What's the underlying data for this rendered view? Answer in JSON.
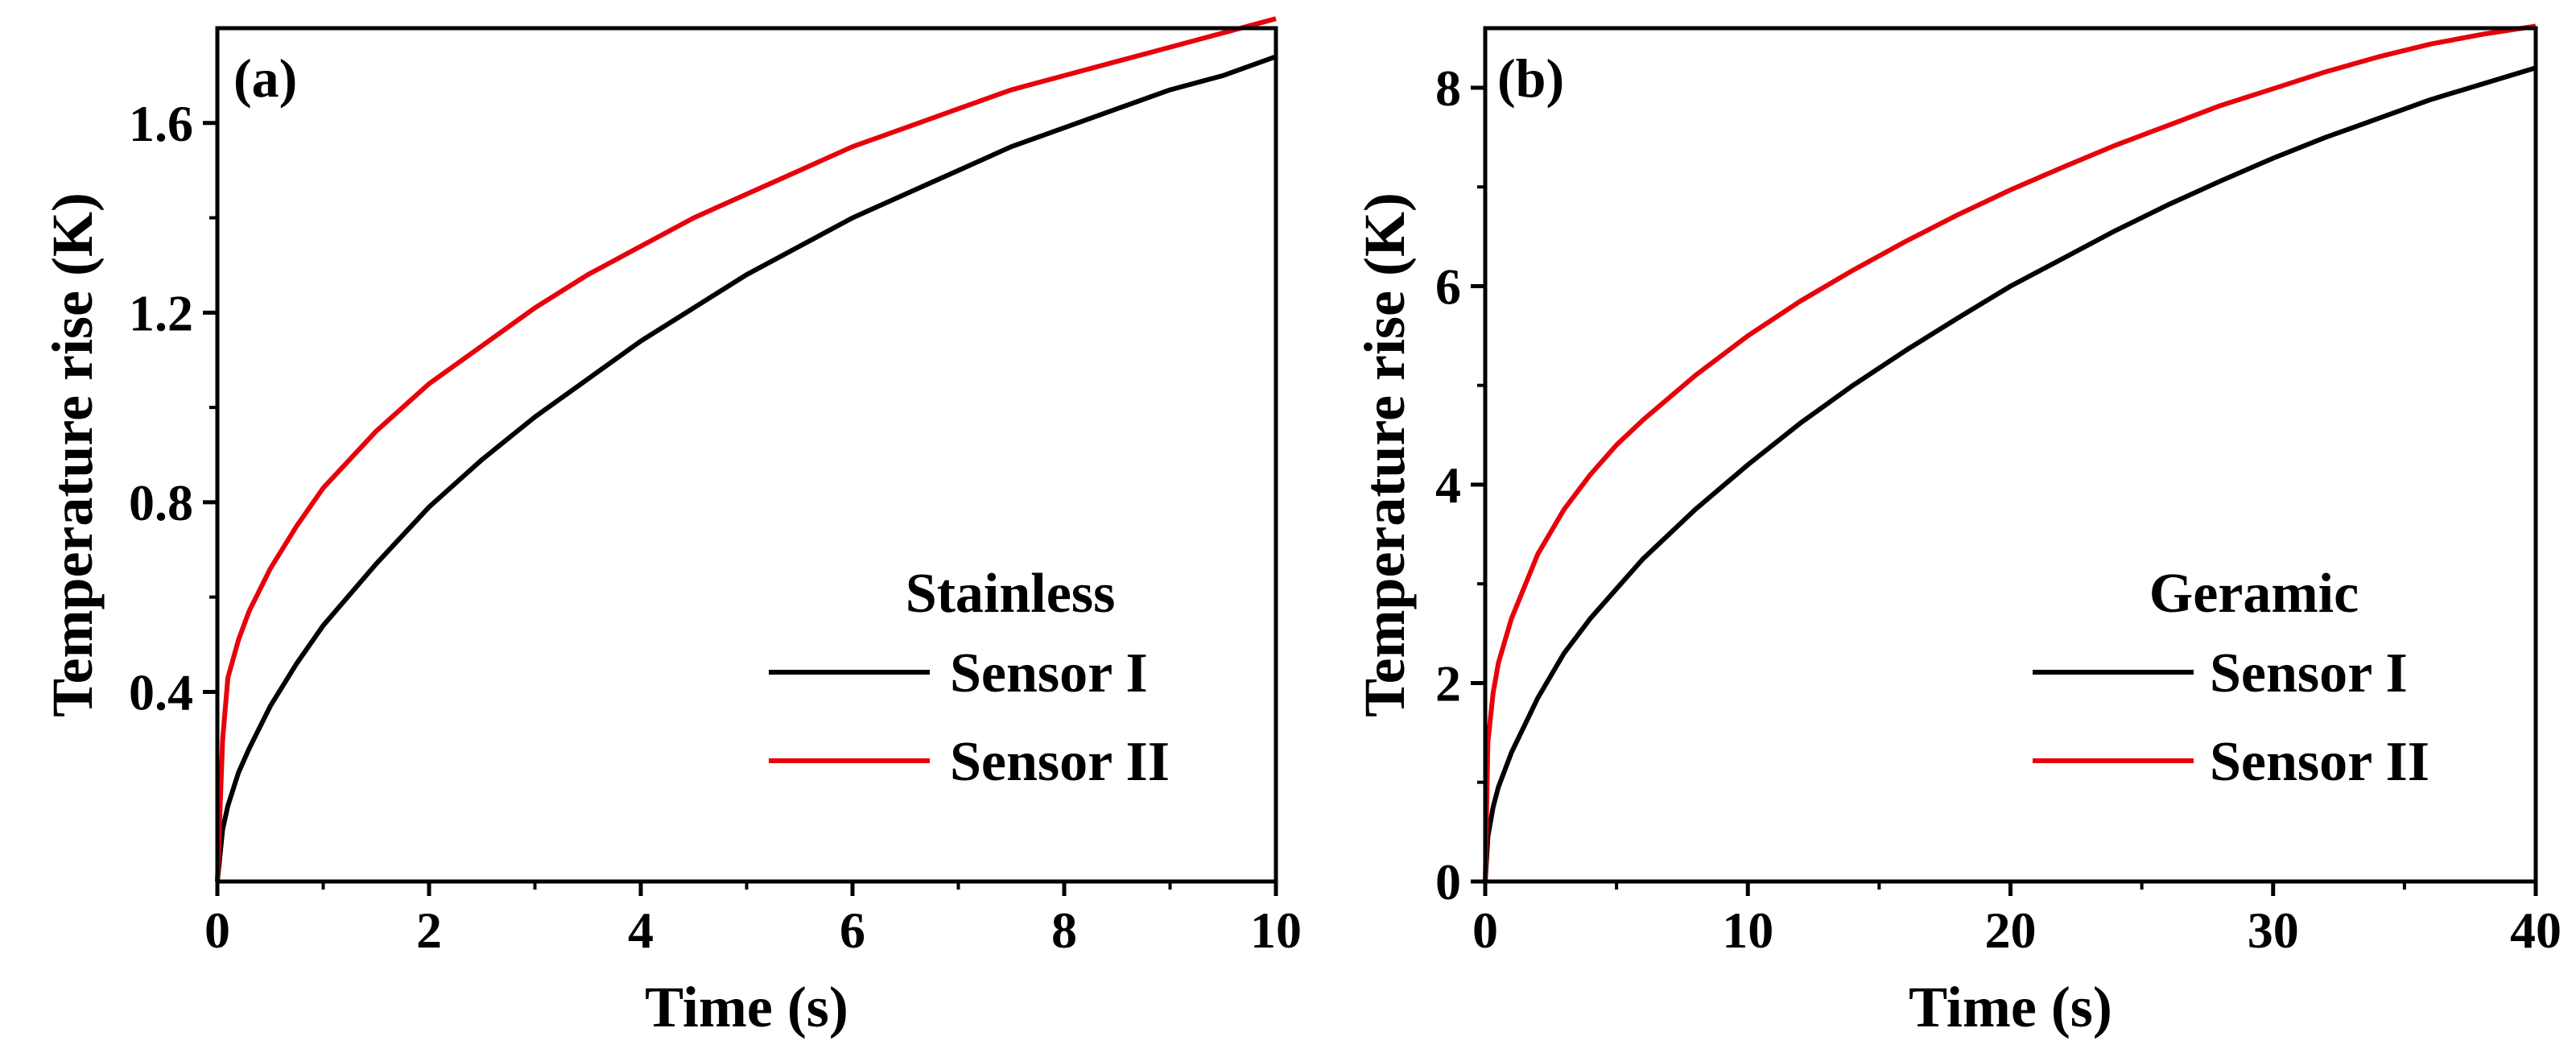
{
  "chart_data": [
    {
      "type": "line",
      "panel_label": "(a)",
      "xlabel": "Time (s)",
      "ylabel": "Temperature rise (K)",
      "xlim": [
        0,
        10
      ],
      "ylim": [
        0,
        1.8
      ],
      "xticks": [
        0,
        2,
        4,
        6,
        8,
        10
      ],
      "xtick_labels": [
        "0",
        "2",
        "4",
        "6",
        "8",
        "10"
      ],
      "yticks": [
        0.4,
        0.8,
        1.2,
        1.6
      ],
      "ytick_labels": [
        "0.4",
        "0.8",
        "1.2",
        "1.6"
      ],
      "legend": {
        "title": "Stainless",
        "placement": "lower-right"
      },
      "series": [
        {
          "name": "Sensor I",
          "color": "#000000",
          "x": [
            0,
            0.05,
            0.1,
            0.2,
            0.3,
            0.5,
            0.75,
            1,
            1.5,
            2,
            2.5,
            3,
            3.5,
            4,
            4.5,
            5,
            5.5,
            6,
            6.5,
            7,
            7.5,
            8,
            8.5,
            9,
            9.5,
            10
          ],
          "y": [
            0,
            0.11,
            0.16,
            0.23,
            0.28,
            0.37,
            0.46,
            0.54,
            0.67,
            0.79,
            0.89,
            0.98,
            1.06,
            1.14,
            1.21,
            1.28,
            1.34,
            1.4,
            1.45,
            1.5,
            1.55,
            1.59,
            1.63,
            1.67,
            1.7,
            1.74
          ]
        },
        {
          "name": "Sensor II",
          "color": "#e8000b",
          "x": [
            0,
            0.05,
            0.1,
            0.2,
            0.3,
            0.5,
            0.75,
            1,
            1.5,
            2,
            2.5,
            3,
            3.5,
            4,
            4.5,
            5,
            5.5,
            6,
            6.5,
            7,
            7.5,
            8,
            8.5,
            9,
            9.5,
            10
          ],
          "y": [
            0,
            0.3,
            0.43,
            0.51,
            0.57,
            0.66,
            0.75,
            0.83,
            0.95,
            1.05,
            1.13,
            1.21,
            1.28,
            1.34,
            1.4,
            1.45,
            1.5,
            1.55,
            1.59,
            1.63,
            1.67,
            1.7,
            1.73,
            1.76,
            1.79,
            1.82
          ]
        }
      ]
    },
    {
      "type": "line",
      "panel_label": "(b)",
      "xlabel": "Time (s)",
      "ylabel": "Temperature rise (K)",
      "xlim": [
        0,
        40
      ],
      "ylim": [
        0,
        8.6
      ],
      "xticks": [
        0,
        10,
        20,
        30,
        40
      ],
      "xtick_labels": [
        "0",
        "10",
        "20",
        "30",
        "40"
      ],
      "yticks": [
        0,
        2,
        4,
        6,
        8
      ],
      "ytick_labels": [
        "0",
        "2",
        "4",
        "6",
        "8"
      ],
      "legend": {
        "title": "Geramic",
        "placement": "lower-right"
      },
      "series": [
        {
          "name": "Sensor I",
          "color": "#000000",
          "x": [
            0,
            0.1,
            0.3,
            0.5,
            1,
            2,
            3,
            4,
            5,
            6,
            8,
            10,
            12,
            14,
            16,
            18,
            20,
            22,
            24,
            26,
            28,
            30,
            32,
            34,
            36,
            38,
            40
          ],
          "y": [
            0,
            0.45,
            0.75,
            0.95,
            1.3,
            1.85,
            2.3,
            2.65,
            2.95,
            3.25,
            3.75,
            4.2,
            4.62,
            5.0,
            5.35,
            5.68,
            6.0,
            6.28,
            6.56,
            6.82,
            7.06,
            7.29,
            7.5,
            7.69,
            7.88,
            8.04,
            8.2
          ]
        },
        {
          "name": "Sensor II",
          "color": "#e8000b",
          "x": [
            0,
            0.1,
            0.3,
            0.5,
            1,
            2,
            3,
            4,
            5,
            6,
            8,
            10,
            12,
            14,
            16,
            18,
            20,
            22,
            24,
            26,
            28,
            30,
            32,
            34,
            36,
            38,
            40
          ],
          "y": [
            0,
            1.4,
            1.9,
            2.2,
            2.65,
            3.3,
            3.75,
            4.1,
            4.4,
            4.65,
            5.1,
            5.5,
            5.85,
            6.16,
            6.45,
            6.72,
            6.97,
            7.2,
            7.42,
            7.62,
            7.82,
            7.99,
            8.16,
            8.31,
            8.44,
            8.54,
            8.62
          ]
        }
      ]
    }
  ]
}
